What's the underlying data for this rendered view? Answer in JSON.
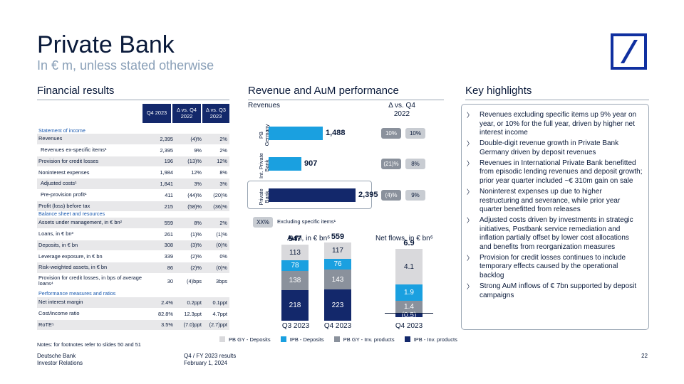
{
  "header": {
    "title": "Private Bank",
    "subtitle": "In € m, unless stated otherwise"
  },
  "financial": {
    "heading": "Financial results",
    "columns": [
      "Q4 2023",
      "Δ vs. Q4 2022",
      "Δ vs. Q3 2023"
    ],
    "sections": [
      {
        "title": "Statement of income",
        "rows": [
          [
            "Revenues",
            "2,395",
            "(4)%",
            "2%"
          ],
          [
            "Revenues ex-specific items¹",
            "2,395",
            "9%",
            "2%"
          ],
          [
            "Provision for credit losses",
            "196",
            "(13)%",
            "12%"
          ],
          [
            "Noninterest expenses",
            "1,984",
            "12%",
            "8%"
          ],
          [
            "Adjusted costs¹",
            "1,841",
            "3%",
            "3%"
          ],
          [
            "Pre-provision profit¹",
            "411",
            "(44)%",
            "(20)%"
          ],
          [
            "Profit (loss) before tax",
            "215",
            "(58)%",
            "(36)%"
          ]
        ]
      },
      {
        "title": "Balance sheet and resources",
        "rows": [
          [
            "Assets under management, in € bn²",
            "559",
            "8%",
            "2%"
          ],
          [
            "Loans, in € bn³",
            "261",
            "(1)%",
            "(1)%"
          ],
          [
            "Deposits, in € bn",
            "308",
            "(3)%",
            "(0)%"
          ],
          [
            "Leverage exposure, in € bn",
            "339",
            "(2)%",
            "0%"
          ],
          [
            "Risk-weighted assets, in € bn",
            "86",
            "(2)%",
            "(0)%"
          ],
          [
            "Provision for credit losses, in bps of average loans⁴",
            "30",
            "(4)bps",
            "3bps"
          ]
        ]
      },
      {
        "title": "Performance measures and ratios",
        "rows": [
          [
            "Net interest margin",
            "2.4%",
            "0.2ppt",
            "0.1ppt"
          ],
          [
            "Cost/income ratio",
            "82.8%",
            "12.3ppt",
            "4.7ppt"
          ],
          [
            "RoTE⁵",
            "3.5%",
            "(7.0)ppt",
            "(2.7)ppt"
          ]
        ]
      }
    ],
    "notes": "Notes: for footnotes refer to slides 50 and 51"
  },
  "revenue": {
    "heading": "Revenue and AuM performance",
    "revenues_label": "Revenues",
    "delta_label": "Δ vs. Q4 2022",
    "bars": [
      {
        "label": "PB Germany",
        "value": "1,488",
        "num": 1488,
        "pill1": "10%",
        "pill2": "10%"
      },
      {
        "label": "Int. Private Bank",
        "value": "907",
        "num": 907,
        "pill1": "(21)%",
        "pill2": "8%"
      },
      {
        "label": "Private Bank",
        "value": "2,395",
        "num": 2395,
        "pill1": "(4)%",
        "pill2": "9%"
      }
    ],
    "xx_label": "XX%",
    "excl_label": "Excluding specific items¹",
    "aum_label": "AuM, in € bn⁶",
    "netflows_label": "Net flows, in € bn⁶",
    "aum": [
      {
        "period": "Q3 2023",
        "total": "547",
        "ipb_inv": "218",
        "pbgy_inv": "138",
        "ipb_dep": "78",
        "pbgy_dep": "113"
      },
      {
        "period": "Q4 2023",
        "total": "559",
        "ipb_inv": "223",
        "pbgy_inv": "143",
        "ipb_dep": "76",
        "pbgy_dep": "117"
      }
    ],
    "netflows": {
      "period": "Q4 2023",
      "total": "6.9",
      "pbgy_dep": "4.1",
      "ipb_dep": "1.9",
      "pbgy_inv": "1.4",
      "ipb_inv": "(0.5)"
    },
    "legend": [
      "PB GY - Deposits",
      "IPB - Deposits",
      "PB GY - Inv. products",
      "IPB - Inv. products"
    ],
    "colors": {
      "pbgy_dep": "#d9d9dc",
      "ipb_dep": "#1aa0e0",
      "pbgy_inv": "#8a919c",
      "ipb_inv": "#13286b"
    }
  },
  "highlights": {
    "heading": "Key highlights",
    "items": [
      "Revenues excluding specific items up 9% year on year, or 10% for the full year, driven by higher net interest income",
      "Double-digit revenue growth in Private Bank Germany driven by deposit revenues",
      "Revenues in International Private Bank benefitted from episodic lending revenues and deposit growth; prior year quarter included ~€ 310m gain on sale",
      "Noninterest expenses up due to higher restructuring and severance, while prior year quarter benefitted from releases",
      "Adjusted costs driven by investments in strategic initiatives, Postbank service remediation and inflation partially offset by lower cost allocations and benefits from reorganization measures",
      "Provision for credit losses continues to include temporary effects caused by the operational backlog",
      "Strong AuM inflows of € 7bn supported by deposit campaigns"
    ]
  },
  "footer": {
    "org1": "Deutsche Bank",
    "org2": "Investor Relations",
    "doc1": "Q4 / FY 2023 results",
    "doc2": "February 1, 2024",
    "page": "22"
  }
}
